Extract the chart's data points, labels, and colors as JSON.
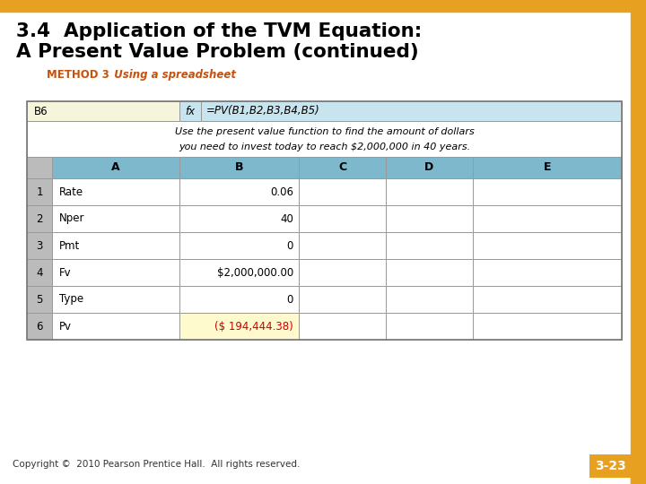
{
  "title_line1": "3.4  Application of the TVM Equation:",
  "title_line2": "A Present Value Problem (continued)",
  "method_label": "METHOD 3",
  "method_text": "  Using a spreadsheet",
  "formula_cell": "B6",
  "formula_fx": "fx",
  "formula_value": "=PV(B1,B2,B3,B4,B5)",
  "description_line1": "Use the present value function to find the amount of dollars",
  "description_line2": "you need to invest today to reach $2,000,000 in 40 years.",
  "col_names": [
    "A",
    "B",
    "C",
    "D",
    "E"
  ],
  "rows": [
    [
      "1",
      "Rate",
      "0.06"
    ],
    [
      "2",
      "Nper",
      "40"
    ],
    [
      "3",
      "Pmt",
      "0"
    ],
    [
      "4",
      "Fv",
      "$2,000,000.00"
    ],
    [
      "5",
      "Type",
      "0"
    ],
    [
      "6",
      "Pv",
      "($ 194,444.38)"
    ]
  ],
  "copyright_text": "Copyright ©  2010 Pearson Prentice Hall.  All rights reserved.",
  "page_number": "3-23",
  "top_bar_color": "#E8A020",
  "right_bar_color": "#E8A020",
  "title_color": "#000000",
  "method_label_color": "#C8500A",
  "method_text_color": "#C8500A",
  "table_header_bg": "#7EB8CC",
  "formula_cell_bg": "#F5F5DC",
  "formula_bar_bg": "#C8E4EE",
  "row_num_bg": "#CCCCCC",
  "pv_row_bg": "#FFFACD",
  "pv_text_color": "#CC0000",
  "grid_color": "#999999",
  "page_num_bg": "#E8A020",
  "page_num_color": "#FFFFFF",
  "bg_color": "#FFFFFF"
}
